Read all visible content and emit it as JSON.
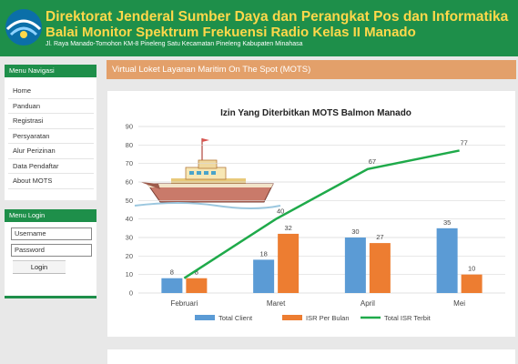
{
  "header": {
    "title": "Direktorat Jenderal Sumber Daya dan Perangkat Pos dan Informatika",
    "subtitle": "Balai Monitor Spektrum Frekuensi Radio Kelas II Manado",
    "address": "Jl. Raya Manado-Tomohon KM-8 Pineleng Satu Kecamatan Pineleng Kabupaten Minahasa"
  },
  "sidebar": {
    "nav_title": "Menu Navigasi",
    "items": [
      {
        "label": "Home"
      },
      {
        "label": "Panduan"
      },
      {
        "label": "Registrasi"
      },
      {
        "label": "Persyaratan"
      },
      {
        "label": "Alur Perizinan"
      },
      {
        "label": "Data Pendaftar"
      },
      {
        "label": "About MOTS"
      }
    ],
    "login_title": "Menu Login",
    "username_placeholder": "Username",
    "password_placeholder": "Password",
    "login_button": "Login"
  },
  "main": {
    "banner_title": "Virtual Loket Layanan Maritim On The Spot (MOTS)"
  },
  "colors": {
    "header_green": "#1e8f4a",
    "header_title": "#ffd84a",
    "banner_orange": "#e3a06a",
    "series_blue": "#5b9bd5",
    "series_orange": "#ed7d31",
    "series_green": "#1faa4a"
  },
  "chart_data": {
    "type": "bar",
    "title": "Izin Yang Diterbitkan MOTS Balmon Manado",
    "categories": [
      "Februari",
      "Maret",
      "April",
      "Mei"
    ],
    "ylim": [
      0,
      90
    ],
    "yticks": [
      0,
      10,
      20,
      30,
      40,
      50,
      60,
      70,
      80,
      90
    ],
    "grid": true,
    "legend_position": "bottom",
    "series": [
      {
        "name": "Total Client",
        "type": "bar",
        "values": [
          8,
          18,
          30,
          35
        ]
      },
      {
        "name": "ISR  Per Bulan",
        "type": "bar",
        "values": [
          8,
          32,
          27,
          10
        ]
      },
      {
        "name": "Total ISR Terbit",
        "type": "line",
        "values": [
          8,
          40,
          67,
          77
        ]
      }
    ]
  }
}
